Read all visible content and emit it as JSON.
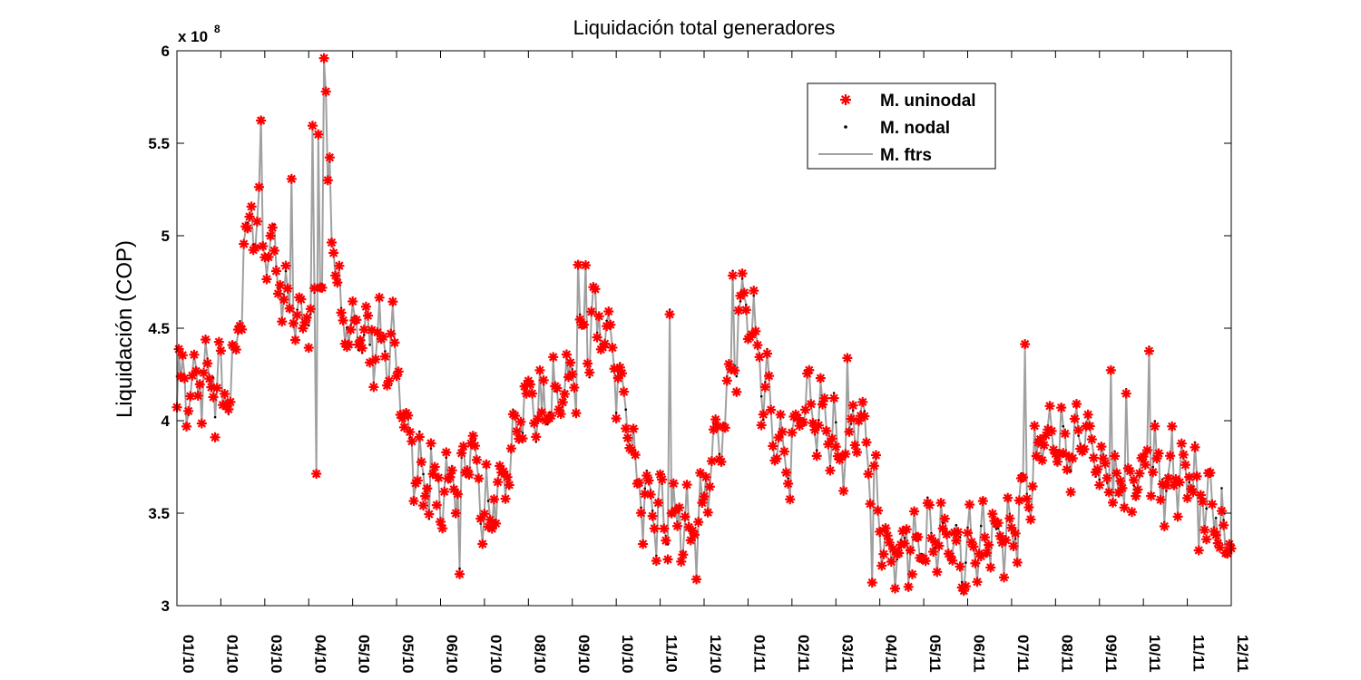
{
  "chart_data": {
    "type": "line",
    "title": "Liquidación total generadores",
    "ylabel": "Liquidación (COP)",
    "xlabel": "",
    "y_multiplier_label": "x 10",
    "y_multiplier_exponent": "8",
    "ylim": [
      3,
      6
    ],
    "yticks": [
      3,
      3.5,
      4,
      4.5,
      5,
      5.5,
      6
    ],
    "ytick_labels": [
      "3",
      "3.5",
      "4",
      "4.5",
      "5",
      "5.5",
      "6"
    ],
    "xtick_labels": [
      "01/10",
      "01/10",
      "03/10",
      "04/10",
      "05/10",
      "05/10",
      "06/10",
      "07/10",
      "08/10",
      "09/10",
      "10/10",
      "11/10",
      "12/10",
      "01/11",
      "02/11",
      "03/11",
      "04/11",
      "05/11",
      "06/11",
      "07/11",
      "08/11",
      "09/11",
      "10/11",
      "11/11",
      "12/11"
    ],
    "grid": false,
    "legend_position": "top-right",
    "series": [
      {
        "name": "M. uninodal",
        "marker": "asterisk",
        "color": "#ff0000"
      },
      {
        "name": "M. nodal",
        "marker": "dot",
        "color": "#000000"
      },
      {
        "name": "M. ftrs",
        "marker": "line",
        "color": "#a0a0a0"
      }
    ],
    "keypoints": [
      [
        0,
        4.05
      ],
      [
        3,
        4.25
      ],
      [
        6,
        4.1
      ],
      [
        10,
        4.2
      ],
      [
        15,
        4.2
      ],
      [
        20,
        4.25
      ],
      [
        25,
        4.15
      ],
      [
        28,
        4.2
      ],
      [
        32,
        4.45
      ],
      [
        35,
        4.9
      ],
      [
        40,
        5.1
      ],
      [
        45,
        4.95
      ],
      [
        50,
        4.9
      ],
      [
        55,
        4.75
      ],
      [
        60,
        4.6
      ],
      [
        65,
        4.5
      ],
      [
        70,
        4.6
      ],
      [
        75,
        4.75
      ],
      [
        80,
        5.2
      ],
      [
        85,
        4.6
      ],
      [
        90,
        4.5
      ],
      [
        95,
        4.5
      ],
      [
        100,
        4.45
      ],
      [
        105,
        4.4
      ],
      [
        110,
        4.4
      ],
      [
        115,
        4.35
      ],
      [
        120,
        4.0
      ],
      [
        125,
        3.75
      ],
      [
        130,
        3.7
      ],
      [
        135,
        3.65
      ],
      [
        140,
        3.55
      ],
      [
        145,
        3.7
      ],
      [
        150,
        3.75
      ],
      [
        155,
        3.85
      ],
      [
        160,
        3.6
      ],
      [
        165,
        3.55
      ],
      [
        170,
        3.65
      ],
      [
        175,
        3.8
      ],
      [
        180,
        4.0
      ],
      [
        185,
        4.15
      ],
      [
        190,
        4.05
      ],
      [
        195,
        4.1
      ],
      [
        200,
        4.1
      ],
      [
        205,
        4.2
      ],
      [
        210,
        4.3
      ],
      [
        215,
        4.45
      ],
      [
        220,
        4.55
      ],
      [
        225,
        4.45
      ],
      [
        230,
        4.3
      ],
      [
        235,
        4.1
      ],
      [
        240,
        3.75
      ],
      [
        245,
        3.55
      ],
      [
        250,
        3.5
      ],
      [
        255,
        3.5
      ],
      [
        260,
        3.5
      ],
      [
        265,
        3.45
      ],
      [
        270,
        3.35
      ],
      [
        275,
        3.55
      ],
      [
        280,
        3.75
      ],
      [
        285,
        3.95
      ],
      [
        290,
        4.3
      ],
      [
        295,
        4.55
      ],
      [
        300,
        4.6
      ],
      [
        305,
        4.3
      ],
      [
        310,
        4.1
      ],
      [
        315,
        3.85
      ],
      [
        320,
        3.8
      ],
      [
        325,
        3.95
      ],
      [
        330,
        4.1
      ],
      [
        335,
        4.05
      ],
      [
        340,
        4.0
      ],
      [
        345,
        3.9
      ],
      [
        350,
        3.85
      ],
      [
        355,
        4.0
      ],
      [
        360,
        3.95
      ],
      [
        365,
        3.65
      ],
      [
        370,
        3.35
      ],
      [
        375,
        3.3
      ],
      [
        380,
        3.3
      ],
      [
        385,
        3.35
      ],
      [
        390,
        3.35
      ],
      [
        395,
        3.35
      ],
      [
        400,
        3.35
      ],
      [
        405,
        3.35
      ],
      [
        410,
        3.3
      ],
      [
        415,
        3.35
      ],
      [
        420,
        3.35
      ],
      [
        425,
        3.4
      ],
      [
        430,
        3.35
      ],
      [
        435,
        3.4
      ],
      [
        440,
        3.45
      ],
      [
        445,
        3.55
      ],
      [
        450,
        3.8
      ],
      [
        455,
        3.95
      ],
      [
        460,
        3.85
      ],
      [
        465,
        3.85
      ],
      [
        470,
        3.9
      ],
      [
        475,
        3.9
      ],
      [
        480,
        3.85
      ],
      [
        485,
        3.75
      ],
      [
        490,
        3.65
      ],
      [
        495,
        3.65
      ],
      [
        500,
        3.7
      ],
      [
        505,
        3.75
      ],
      [
        510,
        3.8
      ],
      [
        515,
        3.7
      ],
      [
        520,
        3.65
      ],
      [
        525,
        3.7
      ],
      [
        530,
        3.7
      ],
      [
        535,
        3.65
      ],
      [
        540,
        3.6
      ],
      [
        545,
        3.45
      ],
      [
        550,
        3.35
      ],
      [
        553,
        3.4
      ]
    ],
    "outliers": [
      [
        44,
        5.64
      ],
      [
        60,
        5.32
      ],
      [
        77,
        5.95
      ],
      [
        78,
        5.77
      ],
      [
        74,
        5.55
      ],
      [
        71,
        5.6
      ],
      [
        73,
        3.7
      ],
      [
        80,
        5.4
      ],
      [
        133,
        3.85
      ],
      [
        148,
        3.2
      ],
      [
        210,
        4.86
      ],
      [
        214,
        4.85
      ],
      [
        258,
        4.6
      ],
      [
        272,
        3.16
      ],
      [
        291,
        4.81
      ],
      [
        351,
        4.34
      ],
      [
        364,
        3.12
      ],
      [
        444,
        4.4
      ],
      [
        489,
        4.28
      ],
      [
        497,
        4.17
      ],
      [
        509,
        4.4
      ],
      [
        521,
        3.95
      ],
      [
        535,
        3.3
      ]
    ],
    "n_days": 553
  }
}
